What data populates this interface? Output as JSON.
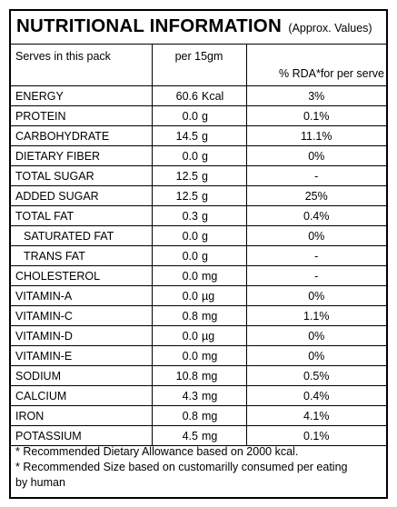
{
  "title": "NUTRITIONAL INFORMATION",
  "title_note": "(Approx. Values)",
  "header": {
    "serves_label": "Serves in this pack",
    "per_label": "per 15gm",
    "rda_label": "% RDA*for per serve"
  },
  "rows": [
    {
      "name": "ENERGY",
      "value": "60.6",
      "unit": "Kcal",
      "rda": "3%"
    },
    {
      "name": "PROTEIN",
      "value": "0.0",
      "unit": "g",
      "rda": "0.1%"
    },
    {
      "name": "CARBOHYDRATE",
      "value": "14.5",
      "unit": "g",
      "rda": "11.1%"
    },
    {
      "name": "DIETARY FIBER",
      "value": "0.0",
      "unit": "g",
      "rda": "0%"
    },
    {
      "name": "TOTAL SUGAR",
      "value": "12.5",
      "unit": "g",
      "rda": "-"
    },
    {
      "name": "ADDED SUGAR",
      "value": "12.5",
      "unit": "g",
      "rda": "25%"
    },
    {
      "name": "TOTAL FAT",
      "value": "0.3",
      "unit": "g",
      "rda": "0.4%"
    },
    {
      "name": "SATURATED FAT",
      "value": "0.0",
      "unit": "g",
      "rda": "0%"
    },
    {
      "name": "TRANS FAT",
      "value": "0.0",
      "unit": "g",
      "rda": "-"
    },
    {
      "name": "CHOLESTEROL",
      "value": "0.0",
      "unit": "mg",
      "rda": "-"
    },
    {
      "name": "VITAMIN-A",
      "value": "0.0",
      "unit": "µg",
      "rda": "0%"
    },
    {
      "name": "VITAMIN-C",
      "value": "0.8",
      "unit": "mg",
      "rda": "1.1%"
    },
    {
      "name": "VITAMIN-D",
      "value": "0.0",
      "unit": "µg",
      "rda": "0%"
    },
    {
      "name": "VITAMIN-E",
      "value": "0.0",
      "unit": "mg",
      "rda": "0%"
    },
    {
      "name": "SODIUM",
      "value": "10.8",
      "unit": "mg",
      "rda": "0.5%"
    },
    {
      "name": "CALCIUM",
      "value": "4.3",
      "unit": "mg",
      "rda": "0.4%"
    },
    {
      "name": "IRON",
      "value": "0.8",
      "unit": "mg",
      "rda": "4.1%"
    },
    {
      "name": "POTASSIUM",
      "value": "4.5",
      "unit": "mg",
      "rda": "0.1%"
    }
  ],
  "footnotes": [
    "* Recommended  Dietary Allowance based on 2000 kcal.",
    "* Recommended Size based on customarilly consumed per eating",
    "by human"
  ]
}
